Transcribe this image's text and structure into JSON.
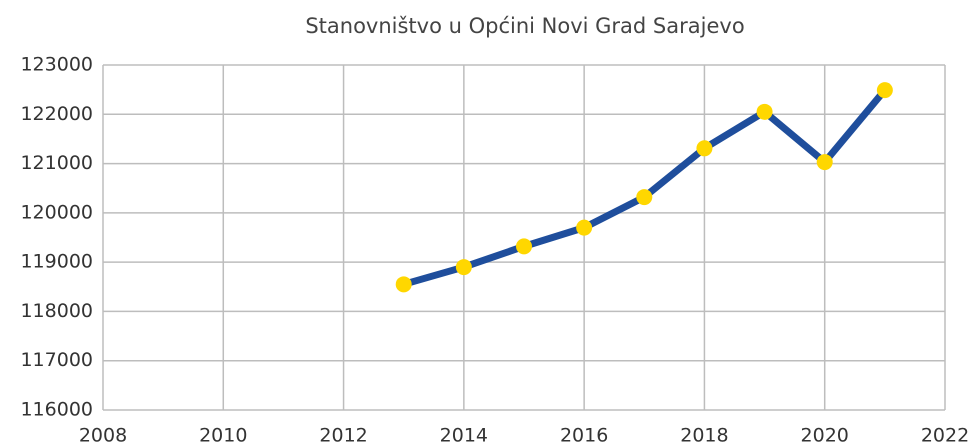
{
  "chart_data": {
    "type": "line",
    "title": "Stanovništvo u Općini Novi Grad Sarajevo",
    "x": [
      2013,
      2014,
      2015,
      2016,
      2017,
      2018,
      2019,
      2020,
      2021
    ],
    "series": [
      {
        "name": "Stanovništvo",
        "color": "#1f4e9c",
        "marker_color": "#ffd700",
        "values": [
          118550,
          118900,
          119320,
          119700,
          120320,
          121310,
          122050,
          121030,
          122490
        ]
      }
    ],
    "xlim": [
      2008,
      2022
    ],
    "xticks": [
      2008,
      2010,
      2012,
      2014,
      2016,
      2018,
      2020,
      2022
    ],
    "ylim": [
      116000,
      123000
    ],
    "yticks": [
      116000,
      117000,
      118000,
      119000,
      120000,
      121000,
      122000,
      123000
    ],
    "grid": true
  }
}
